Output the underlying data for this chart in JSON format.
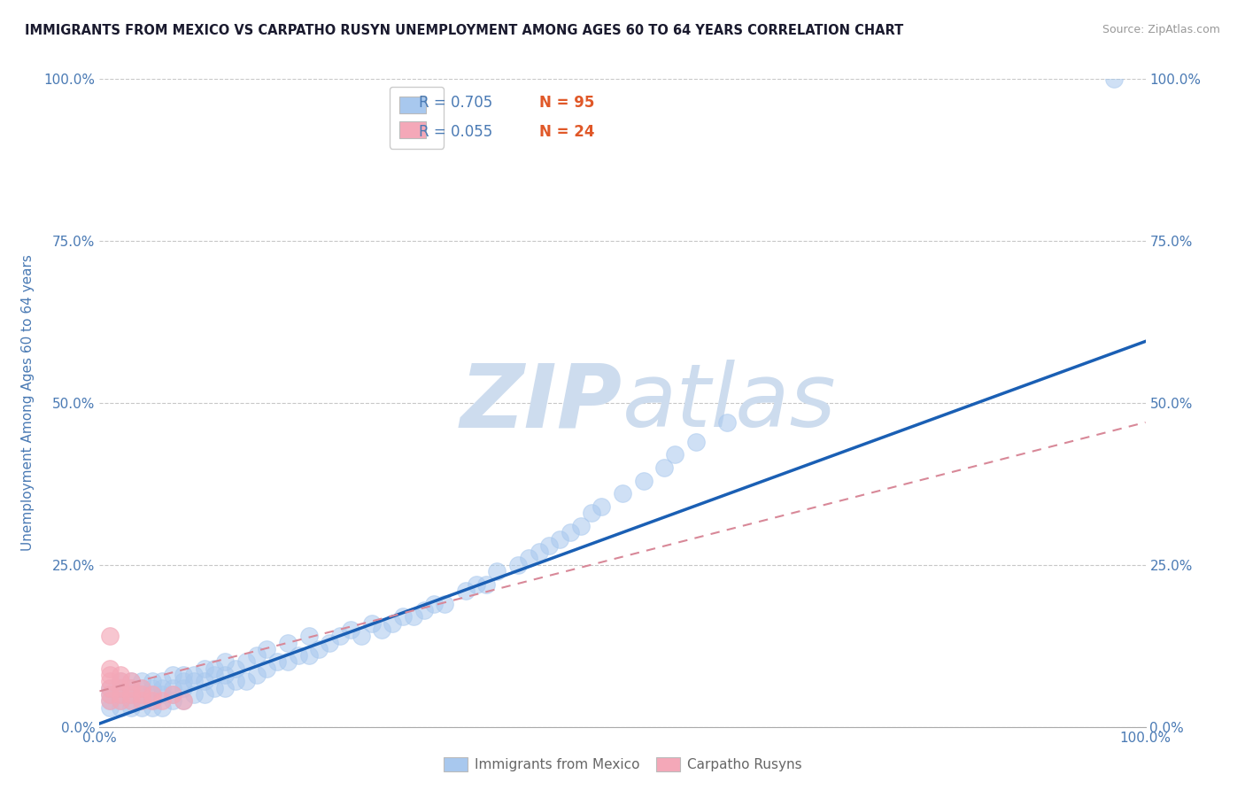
{
  "title": "IMMIGRANTS FROM MEXICO VS CARPATHO RUSYN UNEMPLOYMENT AMONG AGES 60 TO 64 YEARS CORRELATION CHART",
  "source_text": "Source: ZipAtlas.com",
  "ylabel": "Unemployment Among Ages 60 to 64 years",
  "xlim": [
    0.0,
    1.0
  ],
  "ylim": [
    0.0,
    1.0
  ],
  "ytick_labels": [
    "0.0%",
    "25.0%",
    "50.0%",
    "75.0%",
    "100.0%"
  ],
  "ytick_positions": [
    0.0,
    0.25,
    0.5,
    0.75,
    1.0
  ],
  "grid_color": "#c8c8c8",
  "background_color": "#ffffff",
  "watermark_color": "#cddcee",
  "legend_color1": "#a8c8ee",
  "legend_color2": "#f4a8b8",
  "scatter_color_blue": "#a8c8ee",
  "scatter_color_pink": "#f4a8b8",
  "line_color_blue": "#1a5fb4",
  "line_color_pink": "#d88898",
  "title_color": "#1a1a2e",
  "axis_label_color": "#4a7ab4",
  "tick_label_color": "#4a7ab4",
  "blue_scatter_x": [
    0.01,
    0.01,
    0.01,
    0.01,
    0.02,
    0.02,
    0.02,
    0.02,
    0.02,
    0.03,
    0.03,
    0.03,
    0.03,
    0.03,
    0.04,
    0.04,
    0.04,
    0.04,
    0.04,
    0.05,
    0.05,
    0.05,
    0.05,
    0.05,
    0.06,
    0.06,
    0.06,
    0.06,
    0.07,
    0.07,
    0.07,
    0.07,
    0.08,
    0.08,
    0.08,
    0.08,
    0.09,
    0.09,
    0.09,
    0.1,
    0.1,
    0.1,
    0.11,
    0.11,
    0.11,
    0.12,
    0.12,
    0.12,
    0.13,
    0.13,
    0.14,
    0.14,
    0.15,
    0.15,
    0.16,
    0.16,
    0.17,
    0.18,
    0.18,
    0.19,
    0.2,
    0.2,
    0.21,
    0.22,
    0.23,
    0.24,
    0.25,
    0.26,
    0.27,
    0.28,
    0.29,
    0.3,
    0.31,
    0.32,
    0.33,
    0.35,
    0.36,
    0.37,
    0.38,
    0.4,
    0.41,
    0.42,
    0.43,
    0.44,
    0.45,
    0.46,
    0.47,
    0.48,
    0.5,
    0.52,
    0.54,
    0.55,
    0.57,
    0.6,
    0.97
  ],
  "blue_scatter_y": [
    0.03,
    0.04,
    0.05,
    0.06,
    0.03,
    0.04,
    0.05,
    0.06,
    0.07,
    0.03,
    0.04,
    0.05,
    0.06,
    0.07,
    0.03,
    0.04,
    0.05,
    0.06,
    0.07,
    0.03,
    0.04,
    0.05,
    0.06,
    0.07,
    0.03,
    0.05,
    0.06,
    0.07,
    0.04,
    0.05,
    0.06,
    0.08,
    0.04,
    0.06,
    0.07,
    0.08,
    0.05,
    0.07,
    0.08,
    0.05,
    0.07,
    0.09,
    0.06,
    0.08,
    0.09,
    0.06,
    0.08,
    0.1,
    0.07,
    0.09,
    0.07,
    0.1,
    0.08,
    0.11,
    0.09,
    0.12,
    0.1,
    0.1,
    0.13,
    0.11,
    0.11,
    0.14,
    0.12,
    0.13,
    0.14,
    0.15,
    0.14,
    0.16,
    0.15,
    0.16,
    0.17,
    0.17,
    0.18,
    0.19,
    0.19,
    0.21,
    0.22,
    0.22,
    0.24,
    0.25,
    0.26,
    0.27,
    0.28,
    0.29,
    0.3,
    0.31,
    0.33,
    0.34,
    0.36,
    0.38,
    0.4,
    0.42,
    0.44,
    0.47,
    1.0
  ],
  "pink_scatter_x": [
    0.01,
    0.01,
    0.01,
    0.01,
    0.01,
    0.01,
    0.01,
    0.02,
    0.02,
    0.02,
    0.02,
    0.02,
    0.03,
    0.03,
    0.03,
    0.03,
    0.04,
    0.04,
    0.04,
    0.05,
    0.05,
    0.06,
    0.07,
    0.08
  ],
  "pink_scatter_y": [
    0.04,
    0.05,
    0.06,
    0.07,
    0.08,
    0.09,
    0.14,
    0.04,
    0.05,
    0.06,
    0.07,
    0.08,
    0.04,
    0.05,
    0.06,
    0.07,
    0.04,
    0.05,
    0.06,
    0.04,
    0.05,
    0.04,
    0.05,
    0.04
  ],
  "blue_line_x": [
    0.0,
    1.0
  ],
  "blue_line_y": [
    0.005,
    0.595
  ],
  "pink_line_x": [
    0.0,
    1.0
  ],
  "pink_line_y": [
    0.055,
    0.47
  ]
}
